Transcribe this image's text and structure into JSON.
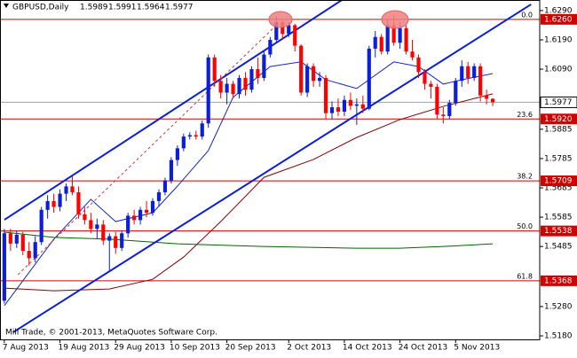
{
  "chart_data": {
    "type": "candlestick",
    "symbol": "GBPUSD,Daily",
    "header_values": [
      "1.5989",
      "1.5991",
      "1.5964",
      "1.5977"
    ],
    "footer": "Mill Trade, © 2001-2013, MetaQuotes Software Corp.",
    "up_color": "#0a1edc",
    "down_color": "#ff0000",
    "xlim": [
      -0.7,
      86.6
    ],
    "ylim": [
      1.5168,
      1.6326
    ],
    "yticks": [
      {
        "value": 1.629,
        "label": "1.6290"
      },
      {
        "value": 1.619,
        "label": "1.6190"
      },
      {
        "value": 1.609,
        "label": "1.6090"
      },
      1.5885,
      1.5785,
      1.5685,
      1.5585,
      1.5485,
      {
        "value": 1.528,
        "label": "1.5280"
      },
      {
        "value": 1.518,
        "label": "1.5180"
      }
    ],
    "grid": false,
    "categories": [
      "7 Aug 2013",
      null,
      null,
      null,
      null,
      null,
      null,
      null,
      null,
      "19 Aug 2013",
      null,
      null,
      null,
      null,
      null,
      null,
      null,
      null,
      "29 Aug 2013",
      null,
      null,
      null,
      null,
      null,
      null,
      null,
      null,
      "10 Sep 2013",
      null,
      null,
      null,
      null,
      null,
      null,
      null,
      null,
      "20 Sep 2013",
      null,
      null,
      null,
      null,
      null,
      null,
      null,
      null,
      null,
      "2 Oct 2013",
      null,
      null,
      null,
      null,
      null,
      null,
      null,
      null,
      "14 Oct 2013",
      null,
      null,
      null,
      null,
      null,
      null,
      null,
      null,
      "24 Oct 2013",
      null,
      null,
      null,
      null,
      null,
      null,
      null,
      null,
      "5 Nov 2013",
      null,
      null,
      null,
      null,
      null,
      null
    ],
    "open": [
      1.53,
      1.553,
      1.5495,
      1.5525,
      1.547,
      1.5445,
      1.55,
      1.561,
      1.564,
      1.562,
      1.5665,
      1.569,
      1.567,
      1.5595,
      1.5575,
      1.5545,
      1.556,
      1.5505,
      1.552,
      1.548,
      1.553,
      1.559,
      1.5575,
      1.561,
      1.56,
      1.564,
      1.567,
      1.571,
      1.578,
      1.582,
      1.586,
      1.5865,
      1.586,
      1.5905,
      1.613,
      1.605,
      1.601,
      1.604,
      1.6005,
      1.606,
      1.602,
      1.609,
      1.606,
      1.614,
      1.619,
      1.625,
      1.621,
      1.624,
      1.617,
      1.601,
      1.61,
      1.605,
      1.606,
      1.594,
      1.596,
      1.5945,
      1.5985,
      1.5965,
      1.597,
      1.5955,
      1.616,
      1.62,
      1.615,
      1.624,
      1.618,
      1.623,
      1.615,
      1.613,
      1.608,
      1.604,
      1.603,
      1.5935,
      1.593,
      1.5975,
      1.605,
      1.61,
      1.606,
      1.61,
      1.6,
      1.5989
    ],
    "high": [
      1.5545,
      1.5545,
      1.554,
      1.5535,
      1.55,
      1.552,
      1.562,
      1.566,
      1.5665,
      1.568,
      1.57,
      1.5725,
      1.569,
      1.562,
      1.56,
      1.558,
      1.5575,
      1.553,
      1.5535,
      1.554,
      1.56,
      1.561,
      1.562,
      1.564,
      1.565,
      1.568,
      1.572,
      1.579,
      1.583,
      1.587,
      1.5875,
      1.588,
      1.5915,
      1.614,
      1.614,
      1.607,
      1.606,
      1.605,
      1.607,
      1.608,
      1.61,
      1.613,
      1.615,
      1.62,
      1.627,
      1.626,
      1.625,
      1.6245,
      1.6175,
      1.611,
      1.611,
      1.608,
      1.607,
      1.598,
      1.599,
      1.6,
      1.601,
      1.599,
      1.6,
      1.617,
      1.622,
      1.621,
      1.626,
      1.6275,
      1.625,
      1.624,
      1.619,
      1.614,
      1.609,
      1.605,
      1.604,
      1.596,
      1.5985,
      1.606,
      1.612,
      1.6115,
      1.611,
      1.611,
      1.602,
      1.5991
    ],
    "low": [
      1.529,
      1.547,
      1.548,
      1.5455,
      1.542,
      1.543,
      1.549,
      1.558,
      1.56,
      1.5605,
      1.564,
      1.566,
      1.558,
      1.556,
      1.553,
      1.551,
      1.549,
      1.54,
      1.546,
      1.547,
      1.5515,
      1.556,
      1.556,
      1.5585,
      1.559,
      1.562,
      1.566,
      1.57,
      1.576,
      1.581,
      1.585,
      1.585,
      1.585,
      1.589,
      1.603,
      1.599,
      1.597,
      1.599,
      1.599,
      1.6,
      1.601,
      1.604,
      1.605,
      1.613,
      1.618,
      1.619,
      1.62,
      1.615,
      1.6,
      1.5995,
      1.603,
      1.603,
      1.592,
      1.592,
      1.593,
      1.593,
      1.595,
      1.59,
      1.594,
      1.595,
      1.613,
      1.614,
      1.614,
      1.617,
      1.616,
      1.614,
      1.612,
      1.606,
      1.602,
      1.599,
      1.592,
      1.5905,
      1.592,
      1.5965,
      1.603,
      1.604,
      1.605,
      1.598,
      1.597,
      1.5964
    ],
    "close": [
      1.553,
      1.5495,
      1.5525,
      1.547,
      1.5445,
      1.55,
      1.561,
      1.564,
      1.562,
      1.5665,
      1.569,
      1.567,
      1.5595,
      1.5575,
      1.5545,
      1.556,
      1.5505,
      1.552,
      1.548,
      1.553,
      1.559,
      1.5575,
      1.561,
      1.56,
      1.564,
      1.567,
      1.571,
      1.578,
      1.582,
      1.586,
      1.5865,
      1.586,
      1.5905,
      1.613,
      1.605,
      1.601,
      1.604,
      1.6005,
      1.606,
      1.602,
      1.609,
      1.606,
      1.614,
      1.619,
      1.625,
      1.621,
      1.624,
      1.617,
      1.601,
      1.61,
      1.605,
      1.606,
      1.594,
      1.596,
      1.5945,
      1.5985,
      1.5965,
      1.597,
      1.5955,
      1.616,
      1.62,
      1.615,
      1.624,
      1.618,
      1.623,
      1.615,
      1.613,
      1.608,
      1.604,
      1.603,
      1.5935,
      1.593,
      1.5975,
      1.605,
      1.61,
      1.606,
      1.61,
      1.6,
      1.5989,
      1.5977
    ],
    "last_price": {
      "value": 1.5977,
      "label": "1.5977"
    },
    "last_price_color": "#a0a0a0",
    "fib_color": "#d00000",
    "fib_levels": [
      {
        "label": "0.0",
        "price": {
          "value": 1.626,
          "label": "1.6260"
        }
      },
      {
        "label": "23.6",
        "price": {
          "value": 1.592,
          "label": "1.5920"
        }
      },
      {
        "label": "38.2",
        "price": 1.5709
      },
      {
        "label": "50.0",
        "price": 1.5538
      },
      {
        "label": "61.8",
        "price": 1.5368
      }
    ],
    "moving_averages": [
      {
        "color": "#1428c8",
        "x": [
          0,
          8,
          14,
          18,
          24,
          28,
          33,
          37,
          43,
          48,
          52,
          57,
          63,
          67,
          71,
          74,
          79
        ],
        "values": [
          1.5283,
          1.551,
          1.5646,
          1.557,
          1.56,
          1.5691,
          1.5812,
          1.5994,
          1.6099,
          1.6115,
          1.6054,
          1.6024,
          1.6115,
          1.6099,
          1.6039,
          1.6054,
          1.6075
        ]
      },
      {
        "color": "#8b0000",
        "x": [
          0,
          8,
          17,
          24,
          29,
          35,
          42,
          50,
          57,
          64,
          71,
          79
        ],
        "values": [
          1.5343,
          1.5334,
          1.534,
          1.5373,
          1.5449,
          1.557,
          1.5721,
          1.5782,
          1.5857,
          1.5918,
          1.5963,
          1.6006
        ]
      },
      {
        "color": "#006400",
        "x": [
          0,
          8,
          17,
          28,
          42,
          57,
          64,
          71,
          79
        ],
        "values": [
          1.5534,
          1.5516,
          1.551,
          1.5494,
          1.5485,
          1.5479,
          1.5479,
          1.5485,
          1.5494
        ]
      }
    ],
    "trendlines": [
      {
        "color": "#0a1edc",
        "width": 2,
        "dashed": false,
        "x": [
          0,
          54.6
        ],
        "values": [
          1.5576,
          1.6326
        ]
      },
      {
        "color": "#0a1edc",
        "width": 2,
        "dashed": false,
        "x": [
          1.4,
          85.2
        ],
        "values": [
          1.5192,
          1.6311
        ]
      },
      {
        "color": "#e03030",
        "width": 1,
        "dashed": true,
        "x": [
          2.2,
          43.8
        ],
        "values": [
          1.5389,
          1.6236
        ]
      }
    ]
  }
}
